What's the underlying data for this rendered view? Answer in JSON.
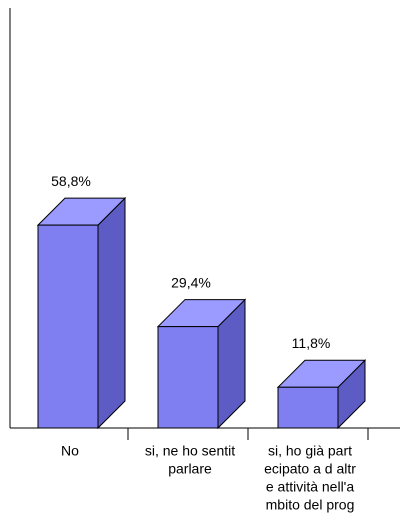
{
  "chart_data": {
    "type": "bar3d",
    "categories": [
      [
        "No"
      ],
      [
        "si, ne ho sentit",
        "parlare"
      ],
      [
        "si, ho già part",
        "ecipato a d altr",
        "e attività nell'a",
        "mbito del prog"
      ]
    ],
    "values": [
      58.8,
      29.4,
      11.8
    ],
    "value_labels": [
      "58,8%",
      "29,4%",
      "11,8%"
    ],
    "color": "#7f7ff2"
  }
}
